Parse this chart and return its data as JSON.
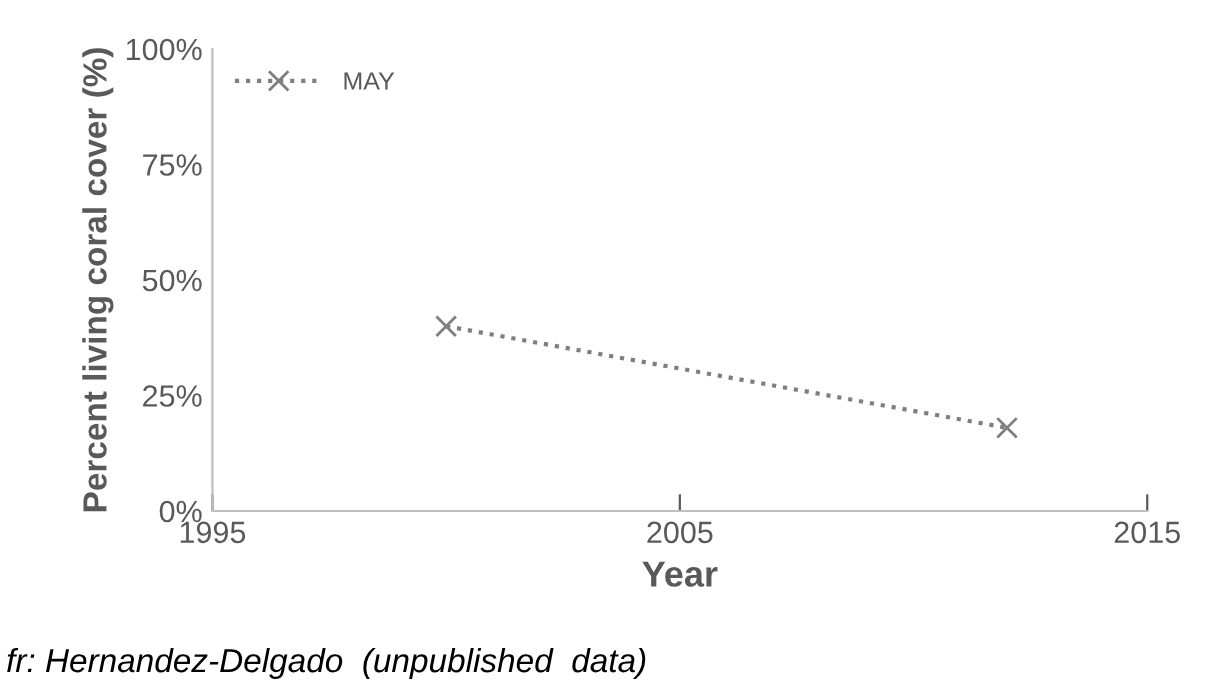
{
  "chart_data": {
    "type": "line",
    "xlabel": "Year",
    "ylabel": "Percent living coral cover (%)",
    "x": [
      2000,
      2012
    ],
    "series": [
      {
        "name": "MAY",
        "color": "#7f7f7f",
        "values": [
          40,
          18
        ]
      }
    ],
    "xlim": [
      1995,
      2015
    ],
    "xticks": [
      1995,
      2005,
      2015
    ],
    "ylim": [
      0,
      100
    ],
    "yticks": [
      {
        "value": 0,
        "label": "0%"
      },
      {
        "value": 25,
        "label": "25%"
      },
      {
        "value": 50,
        "label": "50%"
      },
      {
        "value": 75,
        "label": "75%"
      },
      {
        "value": 100,
        "label": "100%"
      }
    ],
    "grid": false,
    "legend": "top left",
    "marker": "cross",
    "line_style": "dotted",
    "annotations": [
      "fr: Hernandez-Delgado  (unpublished  data)"
    ]
  }
}
